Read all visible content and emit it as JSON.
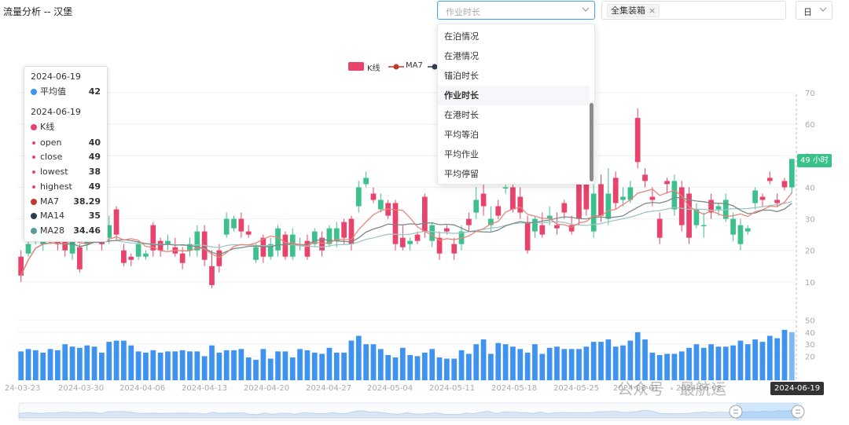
{
  "header": {
    "title": "流量分析 -- 汉堡"
  },
  "metric_select": {
    "placeholder": "作业时长",
    "icon": "chevron-down-icon"
  },
  "container_select": {
    "tag": "全集装箱",
    "tag_close": "×"
  },
  "period_select": {
    "value": "日"
  },
  "dropdown": {
    "options": [
      "在泊情况",
      "在港情况",
      "锚泊时长",
      "作业时长",
      "在港时长",
      "平均等泊",
      "平均作业",
      "平均停留"
    ],
    "selected": "作业时长"
  },
  "legend": [
    "K线",
    "MA7",
    "MA14",
    "MA28"
  ],
  "tooltip": {
    "date1": "2024-06-19",
    "avg_label": "平均值",
    "avg_value": "42",
    "date2": "2024-06-19",
    "k_label": "K线",
    "rows": [
      {
        "label": "open",
        "value": "40"
      },
      {
        "label": "close",
        "value": "49"
      },
      {
        "label": "lowest",
        "value": "38"
      },
      {
        "label": "highest",
        "value": "49"
      }
    ],
    "ma": [
      {
        "label": "MA7",
        "value": "38.29"
      },
      {
        "label": "MA14",
        "value": "35"
      },
      {
        "label": "MA28",
        "value": "34.46"
      }
    ]
  },
  "current_value_label": "49 小时",
  "hover_date_label": "2024-06-19",
  "watermark": "公众号 · 最航运",
  "colors": {
    "up": "#3cc08c",
    "down": "#e8436a",
    "volume": "#3f93f0",
    "ma7": "#e8857a",
    "ma14": "#7c8a8a",
    "ma28": "#9fc7c7",
    "accent": "#409eff"
  },
  "chart_data": {
    "type": "candlestick",
    "x_tick_labels": [
      "24-03-23",
      "2024-03-30",
      "2024-04-06",
      "2024-04-13",
      "2024-04-20",
      "2024-04-27",
      "2024-05-04",
      "2024-05-11",
      "2024-05-18",
      "2024-05-25",
      "2024-06-01",
      "2024-06-08",
      "2024-06-19"
    ],
    "ylim": [
      0,
      70
    ],
    "y_ticks": [
      10,
      20,
      30,
      40,
      50,
      60,
      70
    ],
    "volume_ylim": [
      0,
      55
    ],
    "volume_ticks": [
      20,
      30,
      40,
      50
    ],
    "candles": [
      [
        18,
        12,
        10,
        20
      ],
      [
        19,
        22,
        18,
        25
      ],
      [
        24,
        28,
        22,
        30
      ],
      [
        22,
        26,
        20,
        28
      ],
      [
        28,
        24,
        22,
        30
      ],
      [
        26,
        22,
        20,
        28
      ],
      [
        24,
        20,
        18,
        26
      ],
      [
        19,
        23,
        17,
        25
      ],
      [
        21,
        14,
        13,
        22
      ],
      [
        22,
        26,
        20,
        28
      ],
      [
        30,
        32,
        28,
        34
      ],
      [
        26,
        22,
        20,
        28
      ],
      [
        24,
        28,
        22,
        31
      ],
      [
        33,
        25,
        23,
        34
      ],
      [
        20,
        16,
        15,
        22
      ],
      [
        18,
        17,
        15,
        19
      ],
      [
        18,
        22,
        17,
        23
      ],
      [
        18,
        19,
        17,
        20
      ],
      [
        28,
        20,
        18,
        29
      ],
      [
        23,
        20,
        18,
        24
      ],
      [
        22,
        23,
        20,
        25
      ],
      [
        21,
        19,
        18,
        24
      ],
      [
        19,
        16,
        14,
        21
      ],
      [
        20,
        22,
        18,
        24
      ],
      [
        20,
        26,
        18,
        28
      ],
      [
        26,
        17,
        15,
        28
      ],
      [
        15,
        9,
        8,
        20
      ],
      [
        20,
        15,
        13,
        22
      ],
      [
        25,
        30,
        24,
        32
      ],
      [
        27,
        30,
        26,
        31
      ],
      [
        30,
        26,
        24,
        32
      ],
      [
        26,
        25,
        24,
        28
      ],
      [
        17,
        21,
        16,
        22
      ],
      [
        24,
        18,
        16,
        25
      ],
      [
        18,
        22,
        17,
        24
      ],
      [
        20,
        27,
        18,
        28
      ],
      [
        25,
        18,
        17,
        26
      ],
      [
        18,
        25,
        17,
        27
      ],
      [
        22,
        22,
        20,
        24
      ],
      [
        23,
        18,
        17,
        25
      ],
      [
        22,
        26,
        21,
        27
      ],
      [
        24,
        20,
        18,
        26
      ],
      [
        22,
        27,
        21,
        28
      ],
      [
        23,
        27,
        21,
        29
      ],
      [
        29,
        24,
        22,
        30
      ],
      [
        30,
        22,
        20,
        31
      ],
      [
        34,
        40,
        32,
        42
      ],
      [
        41,
        43,
        40,
        45
      ],
      [
        38,
        36,
        35,
        40
      ],
      [
        33,
        36,
        32,
        38
      ],
      [
        35,
        31,
        30,
        36
      ],
      [
        35,
        22,
        20,
        36
      ],
      [
        24,
        21,
        20,
        28
      ],
      [
        22,
        23,
        20,
        24
      ],
      [
        25,
        23,
        22,
        26
      ],
      [
        37,
        26,
        24,
        38
      ],
      [
        23,
        28,
        21,
        29
      ],
      [
        24,
        19,
        17,
        26
      ],
      [
        27,
        26,
        25,
        28
      ],
      [
        22,
        19,
        17,
        24
      ],
      [
        22,
        26,
        20,
        28
      ],
      [
        30,
        28,
        26,
        32
      ],
      [
        32,
        36,
        30,
        40
      ],
      [
        38,
        34,
        31,
        42
      ],
      [
        28,
        30,
        26,
        34
      ],
      [
        34,
        31,
        30,
        36
      ],
      [
        40,
        40,
        38,
        42
      ],
      [
        40,
        33,
        32,
        46
      ],
      [
        37,
        32,
        30,
        40
      ],
      [
        29,
        20,
        19,
        31
      ],
      [
        26,
        30,
        24,
        31
      ],
      [
        28,
        25,
        24,
        32
      ],
      [
        30,
        31,
        28,
        34
      ],
      [
        28,
        27,
        25,
        32
      ],
      [
        35,
        32,
        30,
        36
      ],
      [
        28,
        26,
        25,
        31
      ],
      [
        42,
        30,
        28,
        44
      ],
      [
        41,
        33,
        31,
        44
      ],
      [
        26,
        38,
        24,
        42
      ],
      [
        41,
        31,
        29,
        44
      ],
      [
        30,
        38,
        28,
        46
      ],
      [
        43,
        35,
        33,
        45
      ],
      [
        36,
        37,
        34,
        40
      ],
      [
        36,
        40,
        35,
        42
      ],
      [
        62,
        48,
        46,
        65
      ],
      [
        44,
        42,
        40,
        46
      ],
      [
        37,
        36,
        34,
        40
      ],
      [
        30,
        24,
        22,
        32
      ],
      [
        42,
        41,
        38,
        43
      ],
      [
        33,
        42,
        31,
        44
      ],
      [
        40,
        28,
        26,
        42
      ],
      [
        38,
        24,
        22,
        40
      ],
      [
        28,
        33,
        27,
        35
      ],
      [
        28,
        28,
        24,
        32
      ],
      [
        36,
        32,
        30,
        38
      ],
      [
        33,
        34,
        31,
        35
      ],
      [
        30,
        36,
        29,
        38
      ],
      [
        25,
        30,
        23,
        32
      ],
      [
        22,
        28,
        20,
        30
      ],
      [
        26,
        27,
        25,
        28
      ],
      [
        35,
        39,
        33,
        40
      ],
      [
        37,
        36,
        34,
        38
      ],
      [
        43,
        42,
        41,
        45
      ],
      [
        36,
        35,
        34,
        38
      ],
      [
        42,
        40,
        39,
        43
      ],
      [
        40,
        49,
        38,
        49
      ]
    ],
    "volumes": [
      24,
      26,
      25,
      23,
      26,
      25,
      30,
      28,
      27,
      29,
      28,
      23,
      32,
      33,
      33,
      29,
      24,
      23,
      25,
      23,
      24,
      24,
      25,
      24,
      24,
      20,
      29,
      23,
      25,
      25,
      26,
      19,
      17,
      26,
      18,
      24,
      24,
      19,
      26,
      25,
      23,
      22,
      27,
      23,
      23,
      33,
      37,
      30,
      30,
      26,
      21,
      19,
      27,
      21,
      20,
      23,
      26,
      19,
      18,
      18,
      25,
      22,
      30,
      34,
      22,
      31,
      30,
      28,
      26,
      23,
      30,
      22,
      27,
      28,
      26,
      26,
      26,
      28,
      32,
      32,
      34,
      28,
      29,
      33,
      40,
      34,
      23,
      21,
      22,
      22,
      24,
      27,
      30,
      27,
      30,
      28,
      28,
      29,
      33,
      30,
      34,
      32,
      37,
      35,
      42,
      40
    ]
  }
}
